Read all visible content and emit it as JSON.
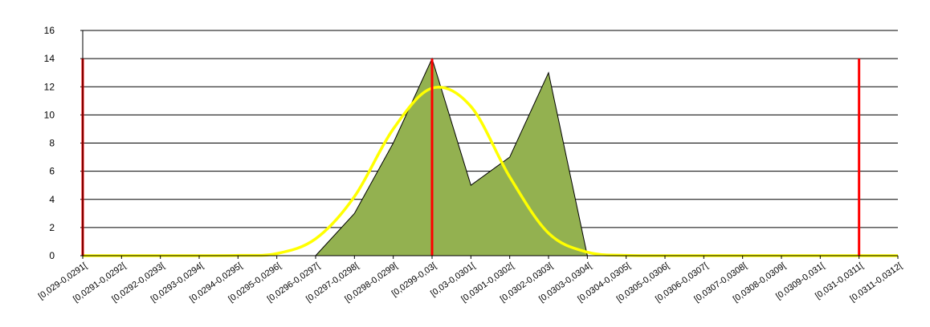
{
  "chart_data": {
    "type": "area",
    "categories": [
      "[0,029-0,0291[",
      "[0,0291-0,0292[",
      "[0,0292-0,0293[",
      "[0,0293-0,0294[",
      "[0,0294-0,0295[",
      "[0,0295-0,0296[",
      "[0,0296-0,0297[",
      "[0,0297-0,0298[",
      "[0,0298-0,0299[",
      "[0,0299-0,03[",
      "[0,03-0,0301[",
      "[0,0301-0,0302[",
      "[0,0302-0,0303[",
      "[0,0303-0,0304[",
      "[0,0304-0,0305[",
      "[0,0305-0,0306[",
      "[0,0306-0,0307[",
      "[0,0307-0,0308[",
      "[0,0308-0,0309[",
      "[0,0309-0,031[",
      "[0,031-0,0311[",
      "[0,0311-0,0312["
    ],
    "series": [
      {
        "type": "area",
        "values": [
          0,
          0,
          0,
          0,
          0,
          0,
          0,
          3,
          8,
          14,
          5,
          7,
          13,
          0,
          0,
          0,
          0,
          0,
          0,
          0,
          0,
          0
        ],
        "color": "#93b150"
      },
      {
        "type": "line",
        "values": [
          0,
          0,
          0,
          0,
          0.02,
          0.15,
          1.2,
          4.2,
          9.0,
          11.9,
          10.6,
          5.6,
          1.6,
          0.25,
          0.02,
          0,
          0,
          0,
          0,
          0,
          0,
          0
        ],
        "color": "#ffff00"
      }
    ],
    "reference_lines": [
      {
        "category_index": 0,
        "y_top": 14,
        "color": "#ff0000"
      },
      {
        "category_index": 9,
        "y_top": 14,
        "color": "#ff0000"
      },
      {
        "category_index": 20,
        "y_top": 14,
        "color": "#ff0000"
      }
    ],
    "ylim": [
      0,
      16
    ],
    "yticks": [
      0,
      2,
      4,
      6,
      8,
      10,
      12,
      14,
      16
    ],
    "grid": true,
    "legend": "none",
    "title": "",
    "xlabel": "",
    "ylabel": ""
  }
}
